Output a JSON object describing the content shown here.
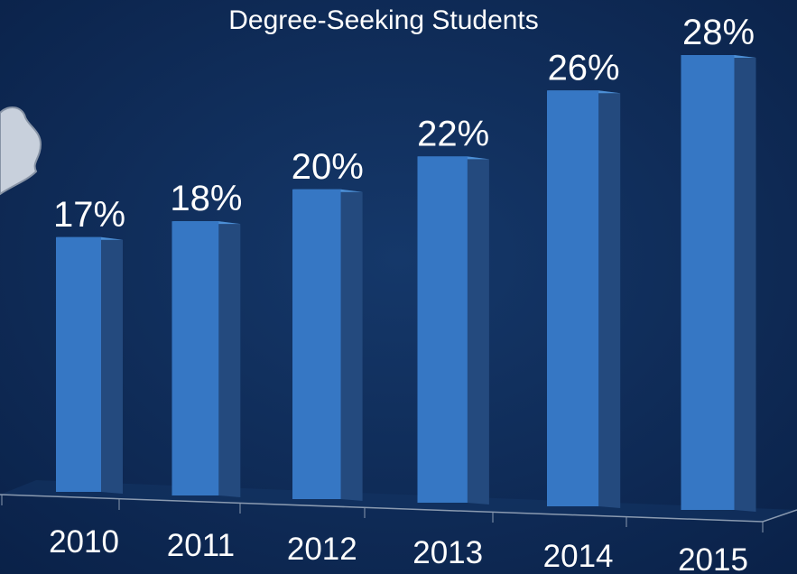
{
  "chart_data": {
    "type": "bar",
    "title": "Degree-Seeking Students",
    "categories": [
      "2010",
      "2011",
      "2012",
      "2013",
      "2014",
      "2015"
    ],
    "values": [
      17,
      18,
      20,
      22,
      26,
      28
    ],
    "value_labels": [
      "17%",
      "18%",
      "20%",
      "22%",
      "26%",
      "28%"
    ],
    "color": "#3677c4"
  }
}
